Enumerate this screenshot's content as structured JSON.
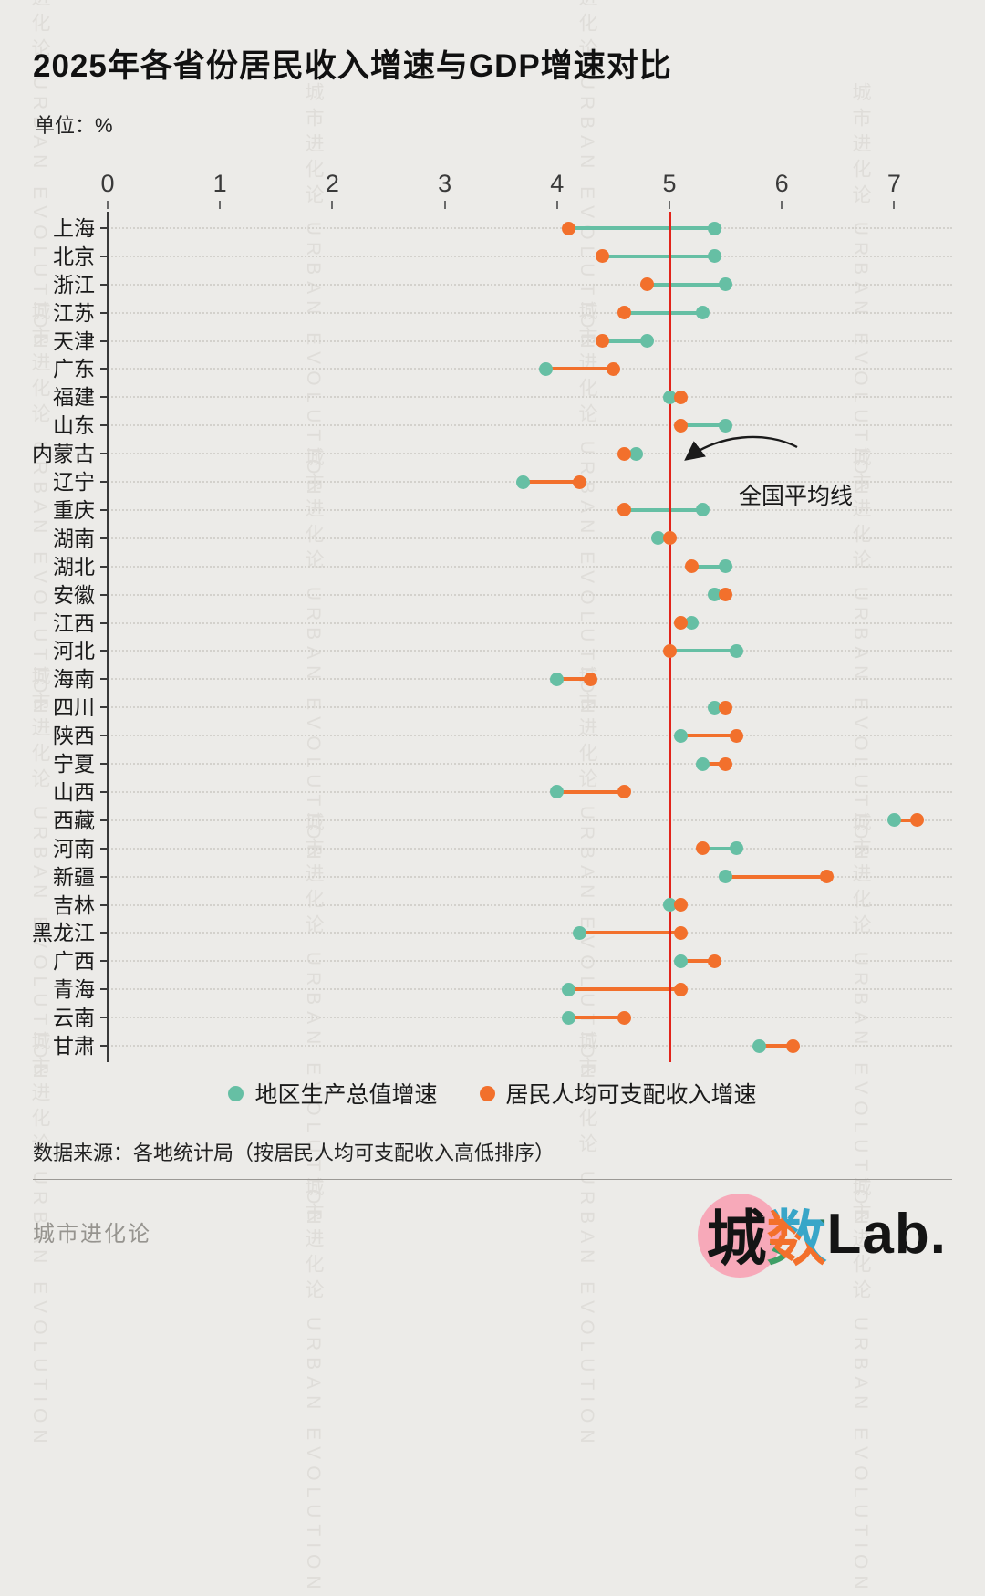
{
  "title": "2025年各省份居民收入增速与GDP增速对比",
  "unit_label": "单位：%",
  "watermark": "城市进化论 URBAN EVOLUTION",
  "annotation": {
    "text": "全国平均线"
  },
  "legend": [
    {
      "label": "地区生产总值增速",
      "color": "#66BFA4"
    },
    {
      "label": "居民人均可支配收入增速",
      "color": "#F2702C"
    }
  ],
  "source": "数据来源：各地统计局（按居民人均可支配收入高低排序）",
  "footer": {
    "left_brand": "城市进化论",
    "logo": {
      "part1": "城",
      "part2": "数",
      "part3": "Lab."
    }
  },
  "colors": {
    "gdp": "#66BFA4",
    "income": "#F2702C",
    "avg_line": "#E2231A",
    "background": "#ECEBE8"
  },
  "chart_data": {
    "type": "dumbbell",
    "title": "2025年各省份居民收入增速与GDP增速对比",
    "unit": "%",
    "x_ticks": [
      0,
      1,
      2,
      3,
      4,
      5,
      6,
      7
    ],
    "xlim": [
      0,
      7.5
    ],
    "avg_line_value": 5,
    "series_names": [
      "地区生产总值增速",
      "居民人均可支配收入增速"
    ],
    "provinces": [
      {
        "name": "上海",
        "gdp": 5.4,
        "income": 4.1
      },
      {
        "name": "北京",
        "gdp": 5.4,
        "income": 4.4
      },
      {
        "name": "浙江",
        "gdp": 5.5,
        "income": 4.8
      },
      {
        "name": "江苏",
        "gdp": 5.3,
        "income": 4.6
      },
      {
        "name": "天津",
        "gdp": 4.8,
        "income": 4.4
      },
      {
        "name": "广东",
        "gdp": 3.9,
        "income": 4.5
      },
      {
        "name": "福建",
        "gdp": 5.0,
        "income": 5.1
      },
      {
        "name": "山东",
        "gdp": 5.5,
        "income": 5.1
      },
      {
        "name": "内蒙古",
        "gdp": 4.7,
        "income": 4.6
      },
      {
        "name": "辽宁",
        "gdp": 3.7,
        "income": 4.2
      },
      {
        "name": "重庆",
        "gdp": 5.3,
        "income": 4.6
      },
      {
        "name": "湖南",
        "gdp": 4.9,
        "income": 5.0
      },
      {
        "name": "湖北",
        "gdp": 5.5,
        "income": 5.2
      },
      {
        "name": "安徽",
        "gdp": 5.4,
        "income": 5.5
      },
      {
        "name": "江西",
        "gdp": 5.2,
        "income": 5.1
      },
      {
        "name": "河北",
        "gdp": 5.6,
        "income": 5.0
      },
      {
        "name": "海南",
        "gdp": 4.0,
        "income": 4.3
      },
      {
        "name": "四川",
        "gdp": 5.4,
        "income": 5.5
      },
      {
        "name": "陕西",
        "gdp": 5.1,
        "income": 5.6
      },
      {
        "name": "宁夏",
        "gdp": 5.3,
        "income": 5.5
      },
      {
        "name": "山西",
        "gdp": 4.0,
        "income": 4.6
      },
      {
        "name": "西藏",
        "gdp": 7.0,
        "income": 7.2
      },
      {
        "name": "河南",
        "gdp": 5.6,
        "income": 5.3
      },
      {
        "name": "新疆",
        "gdp": 5.5,
        "income": 6.4
      },
      {
        "name": "吉林",
        "gdp": 5.0,
        "income": 5.1
      },
      {
        "name": "黑龙江",
        "gdp": 4.2,
        "income": 5.1
      },
      {
        "name": "广西",
        "gdp": 5.1,
        "income": 5.4
      },
      {
        "name": "青海",
        "gdp": 4.1,
        "income": 5.1
      },
      {
        "name": "云南",
        "gdp": 4.1,
        "income": 4.6
      },
      {
        "name": "甘肃",
        "gdp": 5.8,
        "income": 6.1
      }
    ]
  }
}
